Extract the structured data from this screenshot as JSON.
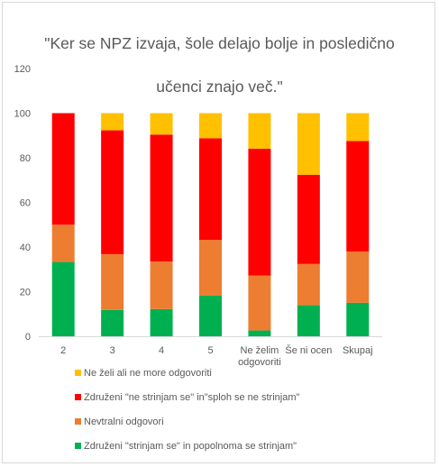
{
  "chart_data": {
    "type": "bar",
    "stacked": true,
    "title": "\"Ker se NPZ izvaja, šole delajo bolje in posledično učenci znajo več.\"",
    "title_lines": [
      "\"Ker se NPZ izvaja, šole delajo bolje in posledično",
      "učenci znajo več.\""
    ],
    "categories": [
      "2",
      "3",
      "4",
      "5",
      "Ne želim odgovoriti",
      "Še ni ocen",
      "Skupaj"
    ],
    "category_lines": [
      [
        "2"
      ],
      [
        "3"
      ],
      [
        "4"
      ],
      [
        "5"
      ],
      [
        "Ne želim",
        "odgovoriti"
      ],
      [
        "Še ni ocen"
      ],
      [
        "Skupaj"
      ]
    ],
    "ylim": [
      0,
      120
    ],
    "yticks": [
      "0",
      "20",
      "40",
      "60",
      "80",
      "100",
      "120"
    ],
    "grid": false,
    "legend_position": "bottom",
    "series": [
      {
        "name": "Združeni  \"strinjam se\" in popolnoma se strinjam\"",
        "color": "#00b050",
        "values": [
          33.3,
          11.8,
          12.2,
          18.2,
          2.6,
          13.9,
          15.0
        ]
      },
      {
        "name": "Nevtralni odgovori",
        "color": "#ed7d31",
        "values": [
          16.7,
          25.0,
          21.3,
          25.0,
          24.6,
          18.5,
          23.0
        ]
      },
      {
        "name": "Združeni  \"ne strinjam se\" in\"sploh se ne strinjam\"",
        "color": "#ff0000",
        "values": [
          50.0,
          55.5,
          56.9,
          45.5,
          56.9,
          40.0,
          49.5
        ]
      },
      {
        "name": "Ne želi ali ne more odgovoriti",
        "color": "#ffc000",
        "values": [
          0.0,
          7.7,
          9.6,
          11.3,
          15.9,
          27.6,
          12.5
        ]
      }
    ]
  }
}
